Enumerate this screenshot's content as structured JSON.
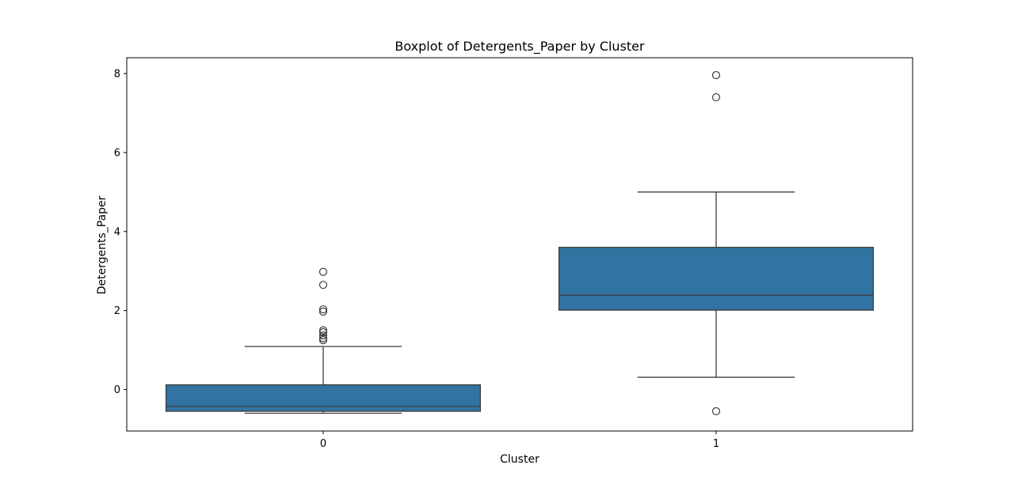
{
  "chart_data": {
    "type": "boxplot",
    "title": "Boxplot of Detergents_Paper by Cluster",
    "xlabel": "Cluster",
    "ylabel": "Detergents_Paper",
    "ylim": [
      -1.05,
      8.4
    ],
    "yticks": [
      0,
      2,
      4,
      6,
      8
    ],
    "grid": false,
    "box_color": "#3274a1",
    "line_color": "#3c3c3c",
    "categories": [
      "0",
      "1"
    ],
    "boxes": [
      {
        "category": "0",
        "whisker_low": -0.6,
        "q1": -0.55,
        "median": -0.43,
        "q3": 0.12,
        "whisker_high": 1.09,
        "outliers": [
          1.25,
          1.3,
          1.37,
          1.45,
          1.5,
          1.97,
          2.03,
          2.65,
          2.98
        ]
      },
      {
        "category": "1",
        "whisker_low": 0.31,
        "q1": 2.01,
        "median": 2.39,
        "q3": 3.6,
        "whisker_high": 5.0,
        "outliers": [
          -0.55,
          7.4,
          7.96
        ]
      }
    ]
  }
}
